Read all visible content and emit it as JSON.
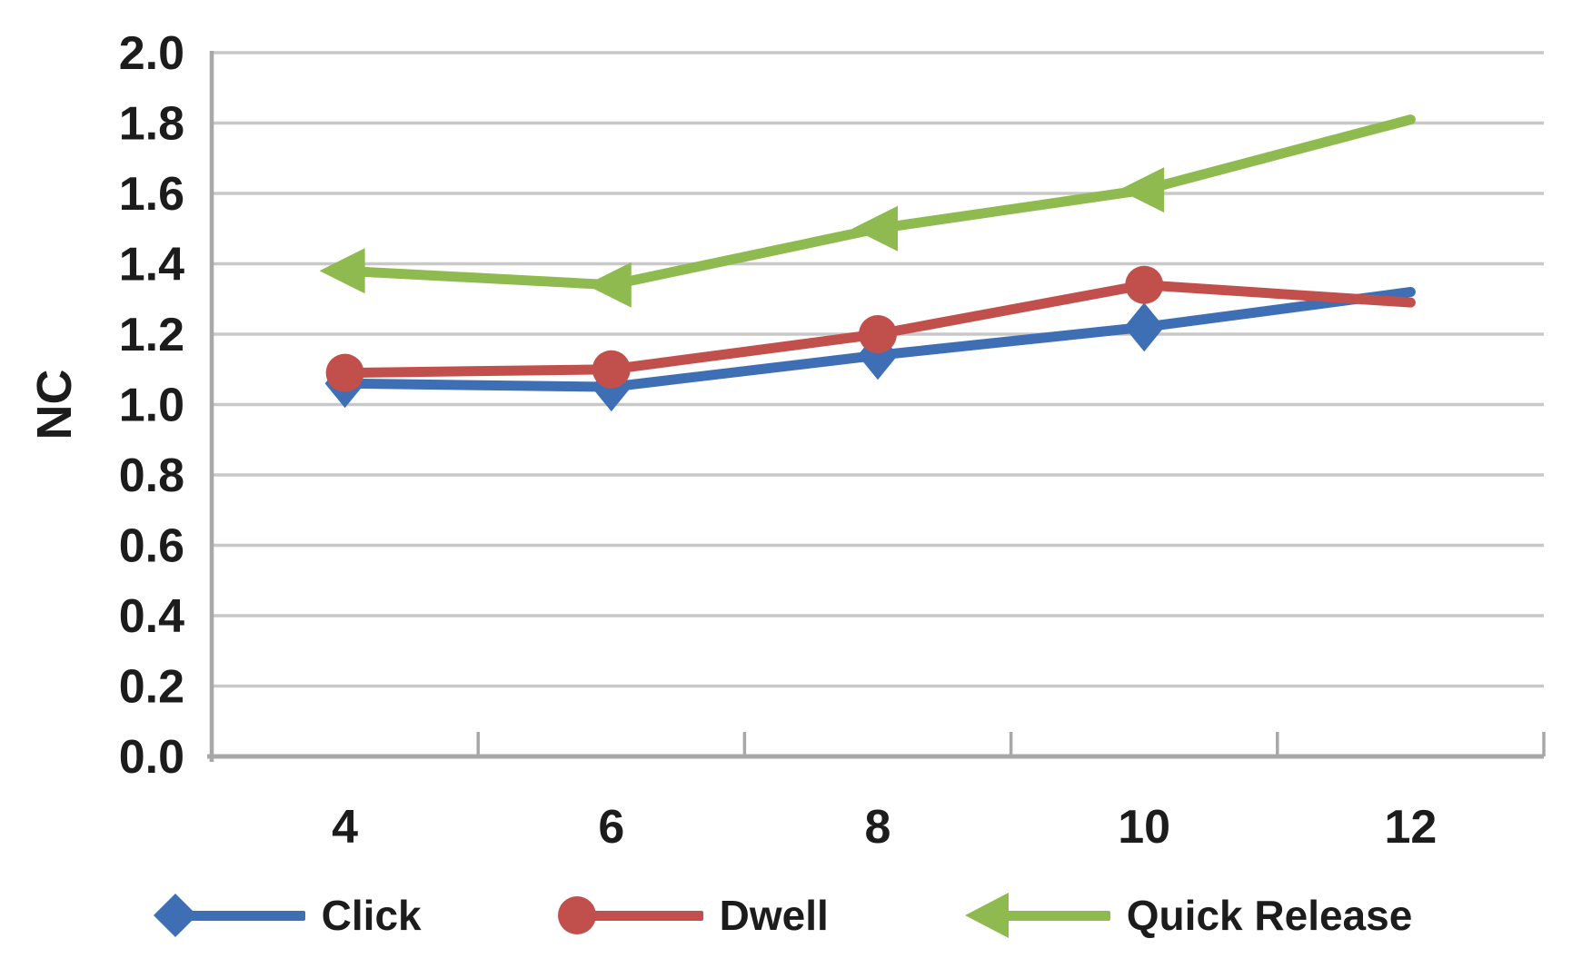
{
  "chart_data": {
    "type": "line",
    "title": "",
    "xlabel": "",
    "ylabel": "NC",
    "x": [
      4,
      6,
      8,
      10,
      12
    ],
    "xticklabels": [
      "4",
      "6",
      "8",
      "10",
      "12"
    ],
    "yticks": [
      0.0,
      0.2,
      0.4,
      0.6,
      0.8,
      1.0,
      1.2,
      1.4,
      1.6,
      1.8,
      2.0
    ],
    "yticklabels": [
      "0.0",
      "0.2",
      "0.4",
      "0.6",
      "0.8",
      "1.0",
      "1.2",
      "1.4",
      "1.6",
      "1.8",
      "2.0"
    ],
    "ylim": [
      0.0,
      2.0
    ],
    "grid": "horizontal",
    "legend_position": "bottom",
    "markers_omit_last_point": true,
    "series": [
      {
        "name": "Click",
        "color": "#3e6fb5",
        "marker": "diamond",
        "values": [
          1.06,
          1.05,
          1.14,
          1.22,
          1.32
        ]
      },
      {
        "name": "Dwell",
        "color": "#c1504c",
        "marker": "circle",
        "values": [
          1.09,
          1.1,
          1.2,
          1.34,
          1.29
        ]
      },
      {
        "name": "Quick Release",
        "color": "#8eba4f",
        "marker": "triangle-left",
        "values": [
          1.38,
          1.34,
          1.5,
          1.61,
          1.81
        ]
      }
    ]
  },
  "colors": {
    "grid": "#c8c8c8",
    "axis": "#a8a8a8",
    "text": "#1c1c1c",
    "background": "#ffffff"
  }
}
